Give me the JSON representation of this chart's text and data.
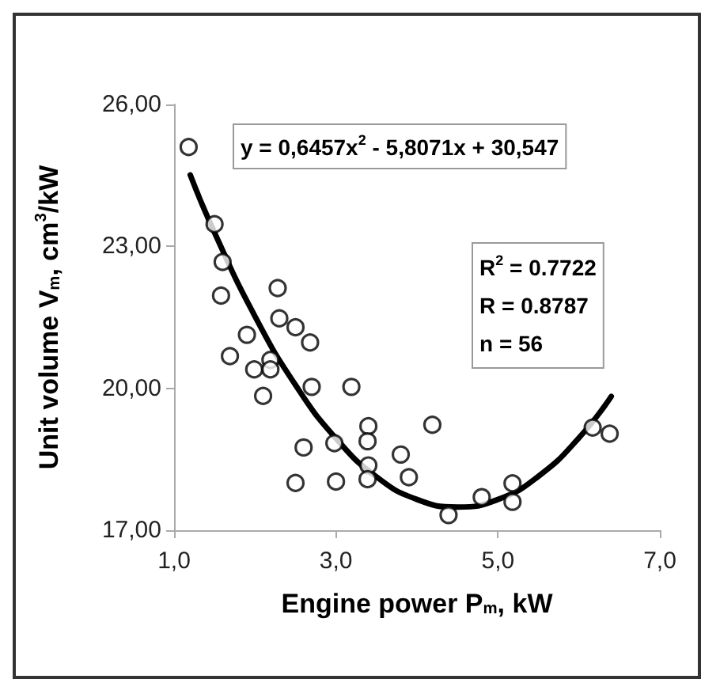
{
  "chart_data": {
    "type": "scatter",
    "xlabel": "Engine power P$_{m}$, kW",
    "ylabel": "Unit volume V$_{m}$, cm$^{3}$/kW",
    "xlim": [
      1,
      7
    ],
    "xticks": [
      {
        "value": 1,
        "label": "1,0"
      },
      {
        "value": 3,
        "label": "3,0"
      },
      {
        "value": 5,
        "label": "5,0"
      },
      {
        "value": 7,
        "label": "7,0"
      }
    ],
    "ylim": [
      17,
      26
    ],
    "yticks": [
      {
        "value": 17,
        "label": "17,00"
      },
      {
        "value": 20,
        "label": "20,00"
      },
      {
        "value": 23,
        "label": "23,00"
      },
      {
        "value": 26,
        "label": "26,00"
      }
    ],
    "marker": "circle",
    "annotations": [
      "y = 0,6457x$^{2}$ - 5,8071x + 30,547",
      "R$^{2}$ = 0.7722",
      "R = 0.8787",
      "n = 56"
    ],
    "series": [
      {
        "color": "#000000",
        "x": [
          1.18,
          1.5,
          1.6,
          1.58,
          2.28,
          2.3,
          2.5,
          2.68,
          1.9,
          1.69,
          1.99,
          2.19,
          2.19,
          2.1,
          2.7,
          3.19,
          2.6,
          2.5,
          2.98,
          3.0,
          3.4,
          3.39,
          3.4,
          3.39,
          3.8,
          3.9,
          4.19,
          4.39,
          4.8,
          5.18,
          5.18,
          6.17,
          6.38
        ],
        "values": [
          25.1,
          23.47,
          22.67,
          21.96,
          22.12,
          21.48,
          21.29,
          20.97,
          21.13,
          20.68,
          20.4,
          20.6,
          20.4,
          19.84,
          20.03,
          20.03,
          18.75,
          18.0,
          18.84,
          18.03,
          19.2,
          18.88,
          18.37,
          18.08,
          18.6,
          18.12,
          19.23,
          17.32,
          17.7,
          17.99,
          17.6,
          19.17,
          19.04
        ]
      },
      {
        "type": "line",
        "color": "#000000",
        "marker": "none",
        "line_style": "solid",
        "x": [
          1.2,
          1.5,
          2,
          2.5,
          3,
          3.5,
          4,
          4.5,
          5,
          5.5,
          6,
          6.4
        ],
        "values": [
          24.51,
          23.29,
          21.52,
          20.07,
          18.94,
          18.13,
          17.65,
          17.49,
          17.65,
          18.14,
          18.95,
          19.83
        ]
      }
    ]
  }
}
